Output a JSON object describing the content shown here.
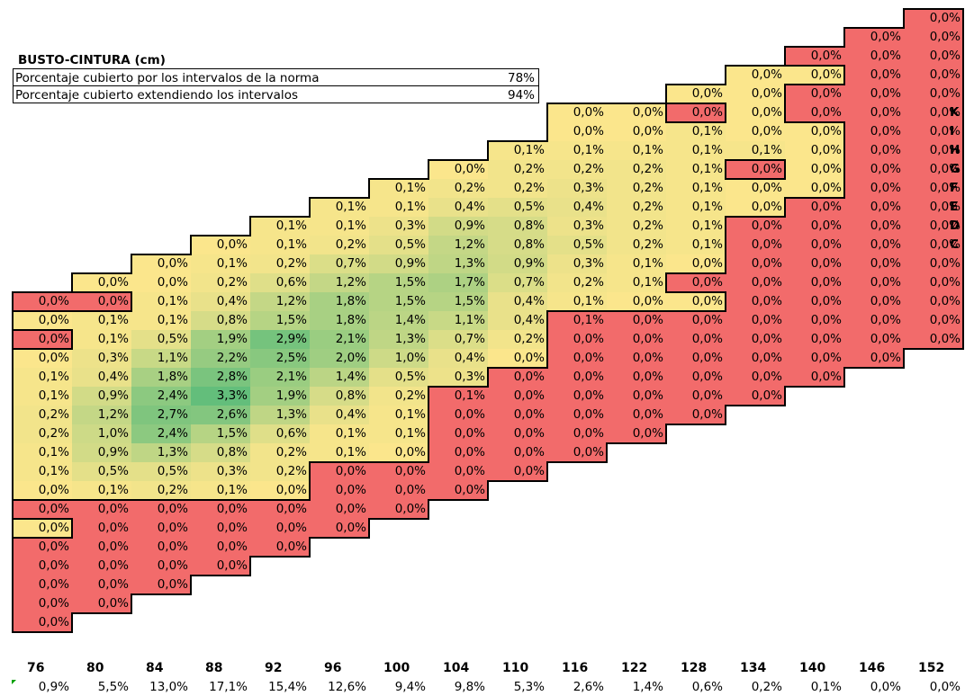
{
  "title": "BUSTO-CINTURA (cm)",
  "info_rows": [
    {
      "label": "Porcentaje cubierto por los intervalos de la norma",
      "value": "78%"
    },
    {
      "label": "Porcentaje cubierto extendiendo los intervalos",
      "value": "94%"
    }
  ],
  "row_labels": [
    "K",
    "I",
    "H",
    "G",
    "F",
    "E",
    "D",
    "C"
  ],
  "col_headers": [
    "76",
    "80",
    "84",
    "88",
    "92",
    "96",
    "100",
    "104",
    "110",
    "116",
    "122",
    "128",
    "134",
    "140",
    "146",
    "152"
  ],
  "col_totals": [
    "0,9%",
    "5,5%",
    "13,0%",
    "17,1%",
    "15,4%",
    "12,6%",
    "9,4%",
    "9,8%",
    "5,3%",
    "2,6%",
    "1,4%",
    "0,6%",
    "0,2%",
    "0,1%",
    "0,0%",
    "0,0%"
  ],
  "colors": {
    "red": "#f26b6b",
    "yellow": "#fbe68c",
    "border": "#000000"
  },
  "grid": {
    "rows": [
      [
        "",
        "",
        "",
        "",
        "",
        "",
        "",
        "",
        "",
        "",
        "",
        "",
        "",
        "",
        "",
        "0,0%"
      ],
      [
        "",
        "",
        "",
        "",
        "",
        "",
        "",
        "",
        "",
        "",
        "",
        "",
        "",
        "",
        "0,0%",
        "0,0%"
      ],
      [
        "",
        "",
        "",
        "",
        "",
        "",
        "",
        "",
        "",
        "",
        "",
        "",
        "",
        "0,0%",
        "0,0%",
        "0,0%"
      ],
      [
        "",
        "",
        "",
        "",
        "",
        "",
        "",
        "",
        "",
        "",
        "",
        "",
        "0,0%",
        "0,0%",
        "0,0%",
        "0,0%"
      ],
      [
        "",
        "",
        "",
        "",
        "",
        "",
        "",
        "",
        "",
        "",
        "",
        "0,0%",
        "0,0%",
        "0,0%",
        "0,0%",
        "0,0%"
      ],
      [
        "",
        "",
        "",
        "",
        "",
        "",
        "",
        "",
        "",
        "0,0%",
        "0,0%",
        "0,0%",
        "0,0%",
        "0,0%",
        "0,0%",
        "0,0%"
      ],
      [
        "",
        "",
        "",
        "",
        "",
        "",
        "",
        "",
        "",
        "0,0%",
        "0,0%",
        "0,1%",
        "0,0%",
        "0,0%",
        "0,0%",
        "0,0%"
      ],
      [
        "",
        "",
        "",
        "",
        "",
        "",
        "",
        "",
        "0,1%",
        "0,1%",
        "0,1%",
        "0,1%",
        "0,1%",
        "0,0%",
        "0,0%",
        "0,0%"
      ],
      [
        "",
        "",
        "",
        "",
        "",
        "",
        "",
        "0,0%",
        "0,2%",
        "0,2%",
        "0,2%",
        "0,1%",
        "0,0%",
        "0,0%",
        "0,0%",
        "0,0%"
      ],
      [
        "",
        "",
        "",
        "",
        "",
        "",
        "0,1%",
        "0,2%",
        "0,2%",
        "0,3%",
        "0,2%",
        "0,1%",
        "0,0%",
        "0,0%",
        "0,0%",
        "0,0%"
      ],
      [
        "",
        "",
        "",
        "",
        "",
        "0,1%",
        "0,1%",
        "0,4%",
        "0,5%",
        "0,4%",
        "0,2%",
        "0,1%",
        "0,0%",
        "0,0%",
        "0,0%",
        "0,0%"
      ],
      [
        "",
        "",
        "",
        "",
        "0,1%",
        "0,1%",
        "0,3%",
        "0,9%",
        "0,8%",
        "0,3%",
        "0,2%",
        "0,1%",
        "0,0%",
        "0,0%",
        "0,0%",
        "0,0%"
      ],
      [
        "",
        "",
        "",
        "0,0%",
        "0,1%",
        "0,2%",
        "0,5%",
        "1,2%",
        "0,8%",
        "0,5%",
        "0,2%",
        "0,1%",
        "0,0%",
        "0,0%",
        "0,0%",
        "0,0%"
      ],
      [
        "",
        "",
        "0,0%",
        "0,1%",
        "0,2%",
        "0,7%",
        "0,9%",
        "1,3%",
        "0,9%",
        "0,3%",
        "0,1%",
        "0,0%",
        "0,0%",
        "0,0%",
        "0,0%",
        "0,0%"
      ],
      [
        "",
        "0,0%",
        "0,0%",
        "0,2%",
        "0,6%",
        "1,2%",
        "1,5%",
        "1,7%",
        "0,7%",
        "0,2%",
        "0,1%",
        "0,0%",
        "0,0%",
        "0,0%",
        "0,0%",
        "0,0%"
      ],
      [
        "0,0%",
        "0,0%",
        "0,1%",
        "0,4%",
        "1,2%",
        "1,8%",
        "1,5%",
        "1,5%",
        "0,4%",
        "0,1%",
        "0,0%",
        "0,0%",
        "0,0%",
        "0,0%",
        "0,0%",
        "0,0%"
      ],
      [
        "0,0%",
        "0,1%",
        "0,1%",
        "0,8%",
        "1,5%",
        "1,8%",
        "1,4%",
        "1,1%",
        "0,4%",
        "0,1%",
        "0,0%",
        "0,0%",
        "0,0%",
        "0,0%",
        "0,0%",
        "0,0%"
      ],
      [
        "0,0%",
        "0,1%",
        "0,5%",
        "1,9%",
        "2,9%",
        "2,1%",
        "1,3%",
        "0,7%",
        "0,2%",
        "0,0%",
        "0,0%",
        "0,0%",
        "0,0%",
        "0,0%",
        "0,0%",
        "0,0%"
      ],
      [
        "0,0%",
        "0,3%",
        "1,1%",
        "2,2%",
        "2,5%",
        "2,0%",
        "1,0%",
        "0,4%",
        "0,0%",
        "0,0%",
        "0,0%",
        "0,0%",
        "0,0%",
        "0,0%",
        "0,0%",
        ""
      ],
      [
        "0,1%",
        "0,4%",
        "1,8%",
        "2,8%",
        "2,1%",
        "1,4%",
        "0,5%",
        "0,3%",
        "0,0%",
        "0,0%",
        "0,0%",
        "0,0%",
        "0,0%",
        "0,0%",
        "",
        ""
      ],
      [
        "0,1%",
        "0,9%",
        "2,4%",
        "3,3%",
        "1,9%",
        "0,8%",
        "0,2%",
        "0,1%",
        "0,0%",
        "0,0%",
        "0,0%",
        "0,0%",
        "0,0%",
        "",
        "",
        ""
      ],
      [
        "0,2%",
        "1,2%",
        "2,7%",
        "2,6%",
        "1,3%",
        "0,4%",
        "0,1%",
        "0,0%",
        "0,0%",
        "0,0%",
        "0,0%",
        "0,0%",
        "",
        "",
        "",
        ""
      ],
      [
        "0,2%",
        "1,0%",
        "2,4%",
        "1,5%",
        "0,6%",
        "0,1%",
        "0,1%",
        "0,0%",
        "0,0%",
        "0,0%",
        "0,0%",
        "",
        "",
        "",
        "",
        ""
      ],
      [
        "0,1%",
        "0,9%",
        "1,3%",
        "0,8%",
        "0,2%",
        "0,1%",
        "0,0%",
        "0,0%",
        "0,0%",
        "0,0%",
        "",
        "",
        "",
        "",
        "",
        ""
      ],
      [
        "0,1%",
        "0,5%",
        "0,5%",
        "0,3%",
        "0,2%",
        "0,0%",
        "0,0%",
        "0,0%",
        "0,0%",
        "",
        "",
        "",
        "",
        "",
        "",
        ""
      ],
      [
        "0,0%",
        "0,1%",
        "0,2%",
        "0,1%",
        "0,0%",
        "0,0%",
        "0,0%",
        "0,0%",
        "",
        "",
        "",
        "",
        "",
        "",
        "",
        ""
      ],
      [
        "0,0%",
        "0,0%",
        "0,0%",
        "0,0%",
        "0,0%",
        "0,0%",
        "0,0%",
        "",
        "",
        "",
        "",
        "",
        "",
        "",
        "",
        ""
      ],
      [
        "0,0%",
        "0,0%",
        "0,0%",
        "0,0%",
        "0,0%",
        "0,0%",
        "",
        "",
        "",
        "",
        "",
        "",
        "",
        "",
        "",
        ""
      ],
      [
        "0,0%",
        "0,0%",
        "0,0%",
        "0,0%",
        "0,0%",
        "",
        "",
        "",
        "",
        "",
        "",
        "",
        "",
        "",
        "",
        ""
      ],
      [
        "0,0%",
        "0,0%",
        "0,0%",
        "0,0%",
        "",
        "",
        "",
        "",
        "",
        "",
        "",
        "",
        "",
        "",
        "",
        ""
      ],
      [
        "0,0%",
        "0,0%",
        "0,0%",
        "",
        "",
        "",
        "",
        "",
        "",
        "",
        "",
        "",
        "",
        "",
        "",
        ""
      ],
      [
        "0,0%",
        "0,0%",
        "",
        "",
        "",
        "",
        "",
        "",
        "",
        "",
        "",
        "",
        "",
        "",
        "",
        ""
      ],
      [
        "0,0%",
        "",
        "",
        "",
        "",
        "",
        "",
        "",
        "",
        "",
        "",
        "",
        "",
        "",
        "",
        ""
      ]
    ],
    "zones": [
      "...............R",
      "..............RR",
      ".............RRR",
      "............YYRR",
      "...........YYRRR",
      ".........YYRYRRR",
      ".........YYYYYRR",
      "........YYYYYYRR",
      ".......YYYYYRYRR",
      "......YYYYYYYYRR",
      ".....YYYYYYYYRRR",
      "....YYYYYYYYRRRR",
      "...YYYYYYYYYRRRR",
      "..YYYYYYYYYYRRRR",
      ".YYYYYYYYYYRRRRR",
      "RRYYYYYYYYYYRRRR",
      "YYYYYYYYYRRRRRRR",
      "RYYYYYYYYRRRRRRR",
      "YYYYYYYYYRRRRRR.",
      "YYYYYYYYRRRRRR..",
      "YYYYYYYRRRRRR...",
      "YYYYYYYRRRRR....",
      "YYYYYYYRRRR.....",
      "YYYYYYYRRR......",
      "YYYYYRRRR.......",
      "YYYYYRRR........",
      "RRRRRRR.........",
      "YRRRRR..........",
      "RRRRR...........",
      "RRRR............",
      "RRR.............",
      "RR..............",
      "R..............."
    ]
  }
}
